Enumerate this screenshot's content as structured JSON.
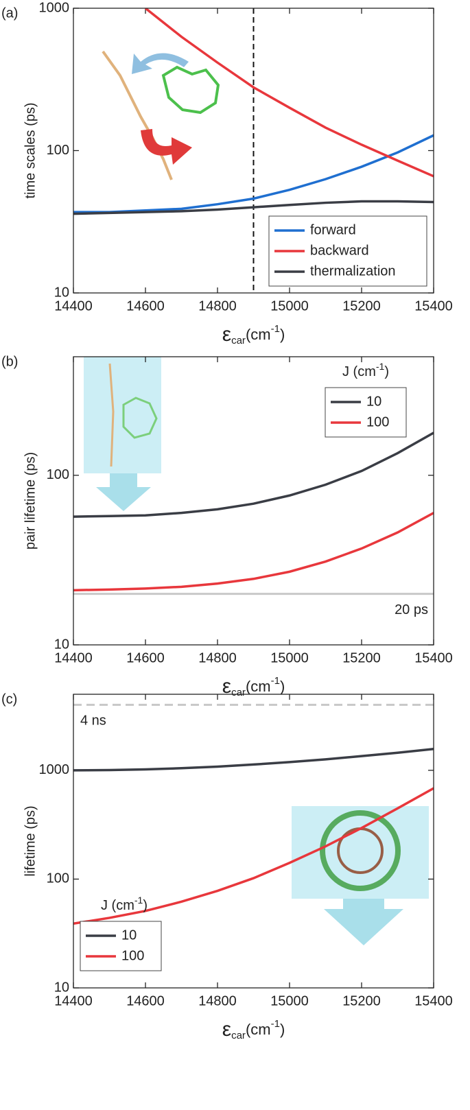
{
  "chart_data": [
    {
      "type": "line",
      "panel_label": "(a)",
      "log_y": true,
      "y_label": "time scales (ps)",
      "x_label": {
        "symbol": "ε",
        "sub": "car",
        "unit": "(cm",
        "sup": "-1",
        "end": ")"
      },
      "x": [
        14400,
        14500,
        14600,
        14700,
        14800,
        14900,
        15000,
        15100,
        15200,
        15300,
        15400
      ],
      "series": [
        {
          "name": "forward",
          "color": "#1f6fd0",
          "values": [
            37,
            37,
            38,
            39,
            42,
            46,
            53,
            63,
            77,
            97,
            128
          ]
        },
        {
          "name": "backward",
          "color": "#e8373c",
          "values": [
            null,
            null,
            1000,
            630,
            415,
            278,
            200,
            145,
            110,
            85,
            66
          ]
        },
        {
          "name": "thermalization",
          "color": "#3a3d45",
          "values": [
            36,
            36.5,
            37,
            37.5,
            38.5,
            40,
            41.5,
            43,
            44,
            44,
            43.5
          ]
        }
      ],
      "vline": 14900,
      "xlim": [
        14400,
        15400
      ],
      "xticks": [
        14400,
        14600,
        14800,
        15000,
        15200,
        15400
      ],
      "ylim": [
        10,
        1000
      ],
      "yticks": [
        10,
        100,
        1000
      ],
      "legend": "lower right"
    },
    {
      "type": "line",
      "panel_label": "(b)",
      "log_y": true,
      "y_label": "pair lifetime (ps)",
      "x_label": {
        "symbol": "ε",
        "sub": "car",
        "unit": "(cm",
        "sup": "-1",
        "end": ")"
      },
      "x": [
        14400,
        14500,
        14600,
        14700,
        14800,
        14900,
        15000,
        15100,
        15200,
        15300,
        15400
      ],
      "series": [
        {
          "name": "10",
          "color": "#3a3d45",
          "values": [
            57,
            57.5,
            58,
            60,
            63,
            68,
            76,
            88,
            106,
            135,
            178
          ]
        },
        {
          "name": "100",
          "color": "#e8373c",
          "values": [
            21,
            21.2,
            21.5,
            22,
            23,
            24.5,
            27,
            31,
            37,
            46,
            60
          ]
        }
      ],
      "hline": {
        "value": 20,
        "label": "20 ps",
        "color": "#c8c8c8",
        "dashed": false
      },
      "legend_title": {
        "text": "J (cm",
        "sup": "-1",
        "end": ")"
      },
      "xlim": [
        14400,
        15400
      ],
      "xticks": [
        14400,
        14600,
        14800,
        15000,
        15200,
        15400
      ],
      "ylim": [
        10,
        500
      ],
      "yticks": [
        10,
        100
      ],
      "legend": "upper right"
    },
    {
      "type": "line",
      "panel_label": "(c)",
      "log_y": true,
      "y_label": "lifetime (ps)",
      "x_label": {
        "symbol": "ε",
        "sub": "car",
        "unit": "(cm",
        "sup": "-1",
        "end": ")"
      },
      "x": [
        14400,
        14500,
        14600,
        14700,
        14800,
        14900,
        15000,
        15100,
        15200,
        15300,
        15400
      ],
      "series": [
        {
          "name": "10",
          "color": "#3a3d45",
          "values": [
            1000,
            1005,
            1020,
            1045,
            1080,
            1130,
            1190,
            1260,
            1350,
            1450,
            1570
          ]
        },
        {
          "name": "100",
          "color": "#e8373c",
          "values": [
            39,
            44,
            51,
            62,
            78,
            102,
            141,
            200,
            295,
            447,
            684
          ]
        }
      ],
      "hline": {
        "value": 4000,
        "label": "4 ns",
        "color": "#c8c8c8",
        "dashed": true
      },
      "legend_title": {
        "text": "J (cm",
        "sup": "-1",
        "end": ")"
      },
      "xlim": [
        14400,
        15400
      ],
      "xticks": [
        14400,
        14600,
        14800,
        15000,
        15200,
        15400
      ],
      "ylim": [
        10,
        5000
      ],
      "yticks": [
        10,
        100,
        1000
      ],
      "legend": "lower left"
    }
  ]
}
